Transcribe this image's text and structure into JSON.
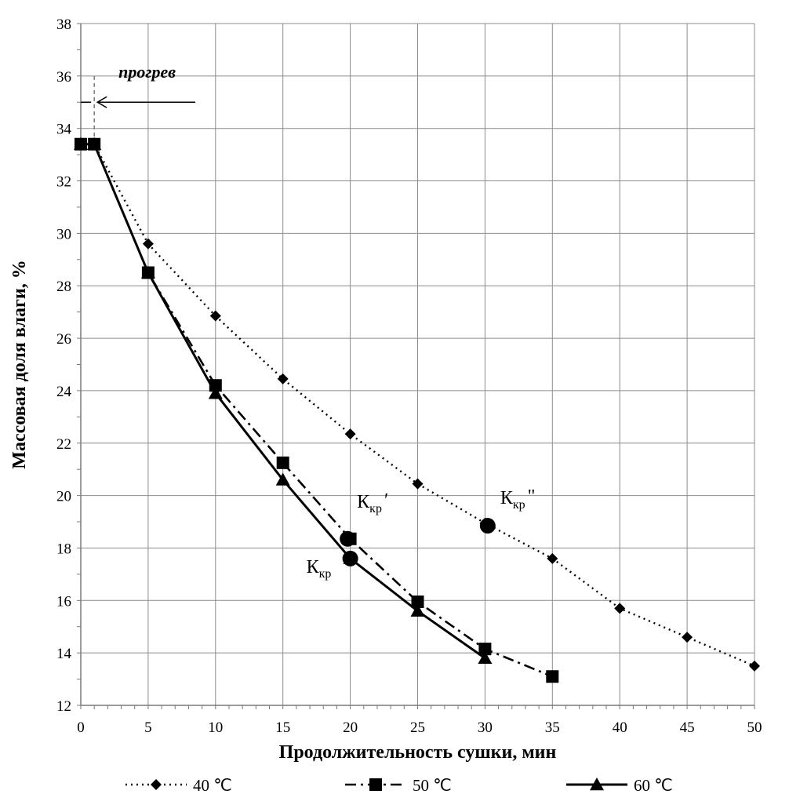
{
  "chart_data": {
    "type": "line",
    "xlabel": "Продолжительность  сушки, мин",
    "ylabel": "Массовая доля влаги, %",
    "xlim": [
      0,
      50
    ],
    "ylim": [
      12,
      38
    ],
    "x_ticks": [
      0,
      5,
      10,
      15,
      20,
      25,
      30,
      35,
      40,
      45,
      50
    ],
    "y_ticks": [
      12,
      14,
      16,
      18,
      20,
      22,
      24,
      26,
      28,
      30,
      32,
      34,
      36,
      38
    ],
    "grid": true,
    "legend_position": "bottom",
    "series": [
      {
        "name": "40 ℃",
        "line_style": "dotted",
        "marker": "diamond",
        "color": "#000000",
        "x": [
          0,
          1,
          5,
          10,
          15,
          20,
          25,
          30,
          35,
          40,
          45,
          50
        ],
        "y": [
          33.4,
          33.4,
          29.6,
          26.85,
          24.45,
          22.35,
          20.45,
          18.95,
          17.6,
          15.7,
          14.6,
          13.5
        ]
      },
      {
        "name": "50 ℃",
        "line_style": "dash-dot",
        "marker": "square",
        "color": "#000000",
        "x": [
          0,
          1,
          5,
          10,
          15,
          20,
          25,
          30,
          35
        ],
        "y": [
          33.4,
          33.4,
          28.5,
          24.2,
          21.25,
          18.35,
          15.95,
          14.15,
          13.1
        ]
      },
      {
        "name": "60 ℃",
        "line_style": "solid",
        "marker": "triangle",
        "color": "#000000",
        "x": [
          0,
          1,
          5,
          10,
          15,
          20,
          25,
          30
        ],
        "y": [
          33.4,
          33.4,
          28.5,
          23.9,
          20.6,
          17.6,
          15.6,
          13.8
        ]
      }
    ],
    "critical_points": [
      {
        "label_main": "К",
        "label_sub": "кр",
        "label_suffix": "",
        "x": 20,
        "y": 17.6
      },
      {
        "label_main": "К",
        "label_sub": "кр",
        "label_suffix": "′",
        "x": 19.8,
        "y": 18.35
      },
      {
        "label_main": "К",
        "label_sub": "кр",
        "label_suffix": "\"",
        "x": 30.2,
        "y": 18.85
      }
    ],
    "heating_annotation": {
      "text": "прогрев",
      "x_start": 0,
      "x_end": 1,
      "y_level": 35
    }
  }
}
